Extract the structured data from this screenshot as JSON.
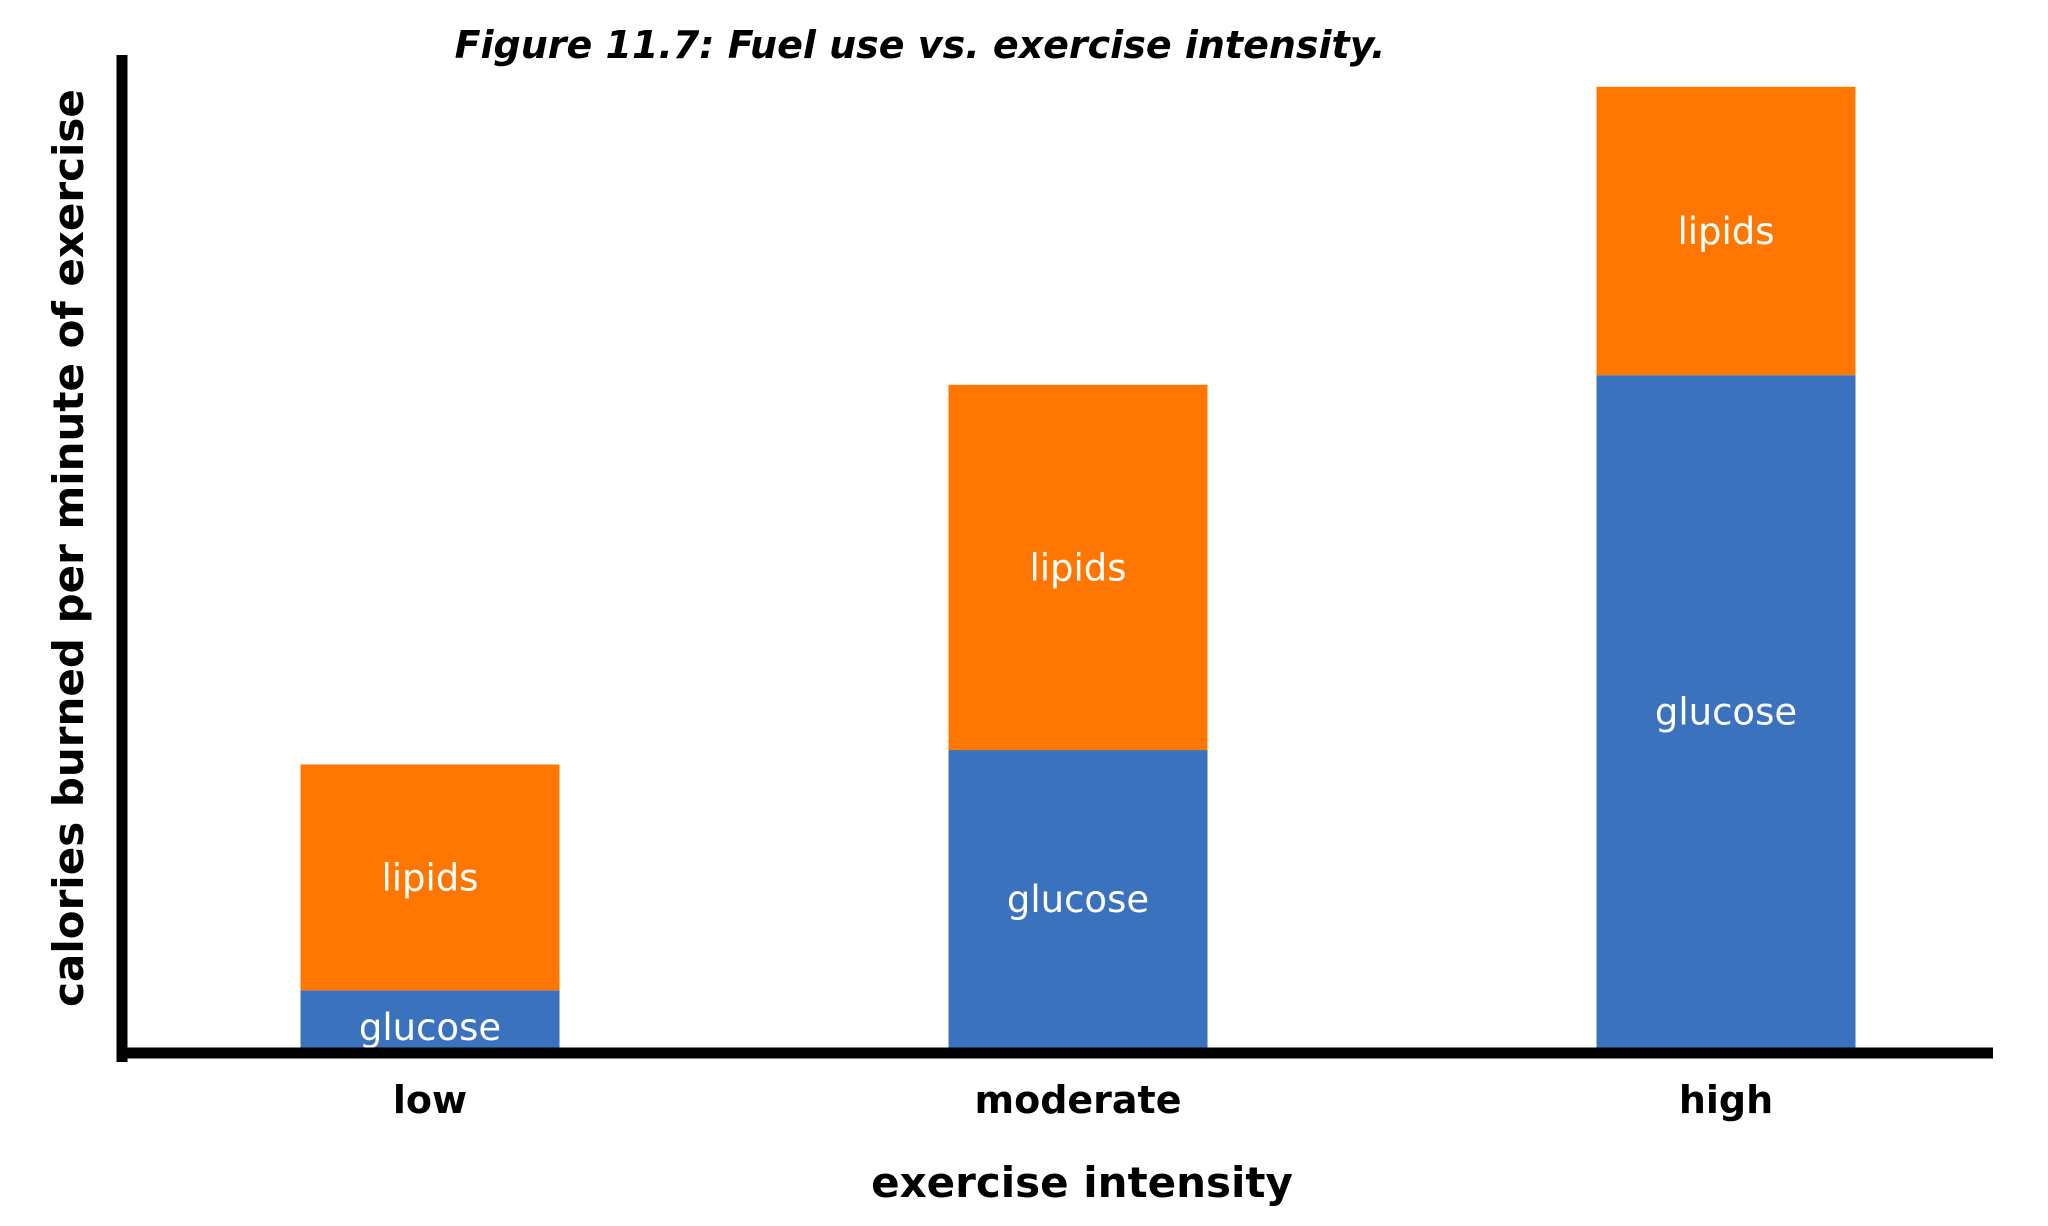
{
  "chart_data": {
    "type": "bar",
    "stacked": true,
    "title": "Figure 11.7: Fuel use vs. exercise intensity.",
    "xlabel": "exercise intensity",
    "ylabel": "calories burned per minute of exercise",
    "categories": [
      "low",
      "moderate",
      "high"
    ],
    "series": [
      {
        "name": "glucose",
        "color": "#3b72bd",
        "values": [
          6,
          31,
          70
        ],
        "labels": [
          "glucose",
          "glucose",
          "glucose"
        ]
      },
      {
        "name": "lipids",
        "color": "#ff7700",
        "values": [
          23.5,
          38,
          30
        ],
        "labels": [
          "lipids",
          "lipids",
          "lipids"
        ]
      }
    ],
    "ylim": [
      0,
      103
    ],
    "grid": false,
    "legend": "none",
    "y_ticks_shown": false
  }
}
